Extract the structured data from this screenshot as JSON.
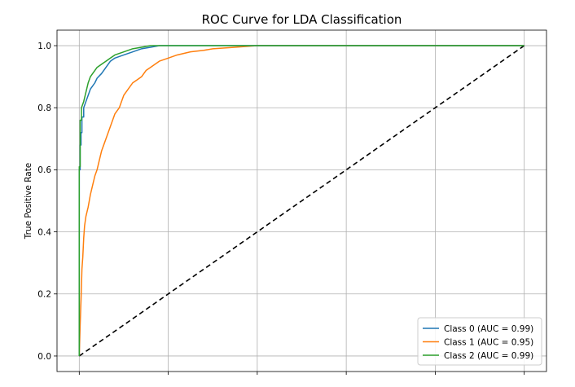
{
  "chart_data": {
    "type": "line",
    "title": "ROC Curve for LDA Classification",
    "xlabel": "",
    "ylabel": "True Positive Rate",
    "xlim": [
      -0.05,
      1.05
    ],
    "ylim": [
      -0.05,
      1.05
    ],
    "x_ticks": [
      0.0,
      0.2,
      0.4,
      0.6,
      0.8,
      1.0
    ],
    "y_ticks": [
      0.0,
      0.2,
      0.4,
      0.6,
      0.8,
      1.0
    ],
    "y_tick_labels": [
      "0.0",
      "0.2",
      "0.4",
      "0.6",
      "0.8",
      "1.0"
    ],
    "grid": true,
    "legend_position": "lower-right",
    "series": [
      {
        "name": "Class 0 (AUC = 0.99)",
        "color": "#1f77b4",
        "x": [
          0.0,
          0.0,
          0.002,
          0.002,
          0.004,
          0.004,
          0.006,
          0.006,
          0.01,
          0.01,
          0.015,
          0.02,
          0.025,
          0.03,
          0.035,
          0.04,
          0.05,
          0.06,
          0.07,
          0.08,
          0.1,
          0.12,
          0.14,
          0.16,
          0.18,
          0.2,
          1.0
        ],
        "y": [
          0.0,
          0.6,
          0.6,
          0.68,
          0.68,
          0.72,
          0.72,
          0.77,
          0.77,
          0.8,
          0.82,
          0.84,
          0.86,
          0.87,
          0.88,
          0.895,
          0.91,
          0.93,
          0.95,
          0.96,
          0.97,
          0.98,
          0.99,
          0.995,
          1.0,
          1.0,
          1.0
        ]
      },
      {
        "name": "Class 1 (AUC = 0.95)",
        "color": "#ff7f0e",
        "x": [
          0.0,
          0.002,
          0.004,
          0.006,
          0.008,
          0.01,
          0.012,
          0.015,
          0.02,
          0.025,
          0.03,
          0.035,
          0.04,
          0.045,
          0.05,
          0.055,
          0.06,
          0.065,
          0.07,
          0.075,
          0.08,
          0.09,
          0.1,
          0.11,
          0.12,
          0.13,
          0.14,
          0.15,
          0.16,
          0.18,
          0.2,
          0.22,
          0.25,
          0.28,
          0.3,
          0.35,
          0.4,
          1.0
        ],
        "y": [
          0.0,
          0.1,
          0.18,
          0.28,
          0.32,
          0.38,
          0.42,
          0.45,
          0.48,
          0.52,
          0.55,
          0.58,
          0.6,
          0.63,
          0.66,
          0.68,
          0.7,
          0.72,
          0.74,
          0.76,
          0.78,
          0.8,
          0.84,
          0.86,
          0.88,
          0.89,
          0.9,
          0.92,
          0.93,
          0.95,
          0.96,
          0.97,
          0.98,
          0.985,
          0.99,
          0.995,
          1.0,
          1.0
        ]
      },
      {
        "name": "Class 2 (AUC = 0.99)",
        "color": "#2ca02c",
        "x": [
          0.0,
          0.0,
          0.002,
          0.002,
          0.005,
          0.005,
          0.01,
          0.015,
          0.02,
          0.025,
          0.03,
          0.035,
          0.04,
          0.05,
          0.06,
          0.07,
          0.08,
          0.1,
          0.12,
          0.14,
          0.16,
          0.18,
          1.0
        ],
        "y": [
          0.0,
          0.61,
          0.61,
          0.76,
          0.76,
          0.8,
          0.82,
          0.85,
          0.88,
          0.9,
          0.91,
          0.92,
          0.93,
          0.94,
          0.95,
          0.96,
          0.97,
          0.98,
          0.99,
          0.995,
          1.0,
          1.0,
          1.0
        ]
      }
    ],
    "reference_line": {
      "x": [
        0.0,
        1.0
      ],
      "y": [
        0.0,
        1.0
      ],
      "color": "#000000",
      "style": "dashed"
    }
  }
}
